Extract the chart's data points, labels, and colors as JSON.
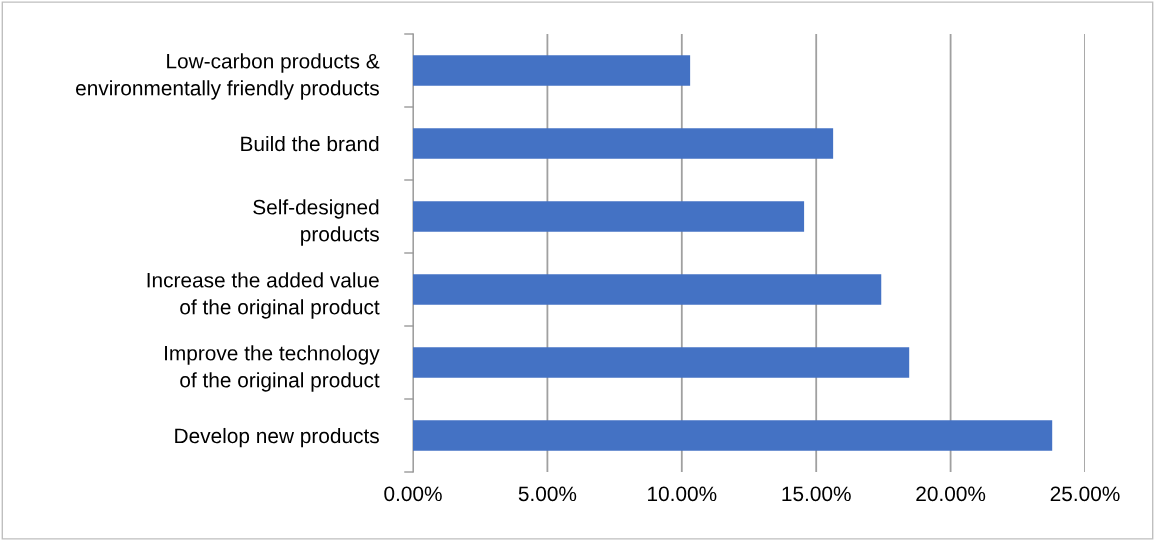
{
  "chart_data": {
    "type": "bar",
    "orientation": "horizontal",
    "categories": [
      "Low-carbon products &\nenvironmentally friendly products",
      "Build the brand",
      "Self-designed\nproducts",
      "Increase the added value\nof the original product",
      "Improve the technology\nof the original product",
      "Develop new products"
    ],
    "values": [
      10.31,
      15.63,
      14.55,
      17.42,
      18.46,
      23.78
    ],
    "color": "#4472c4",
    "xlim": [
      0,
      25
    ],
    "xticks": [
      {
        "value": 0,
        "label": "0.00%"
      },
      {
        "value": 5,
        "label": "5.00%"
      },
      {
        "value": 10,
        "label": "10.00%"
      },
      {
        "value": 15,
        "label": "15.00%"
      },
      {
        "value": 20,
        "label": "20.00%"
      },
      {
        "value": 25,
        "label": "25.00%"
      }
    ],
    "grid": "x",
    "legend": false
  }
}
